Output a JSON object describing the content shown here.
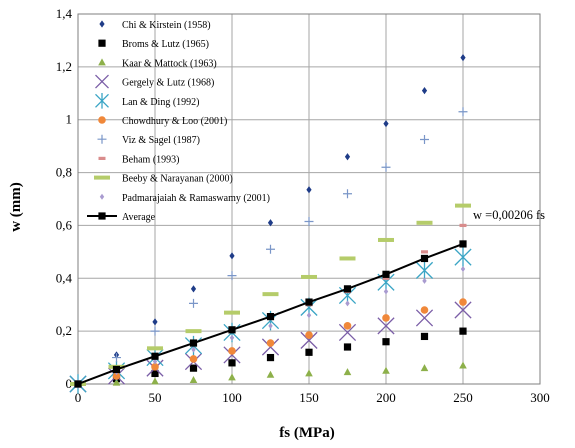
{
  "chart_data": {
    "type": "scatter",
    "xlabel": "fs (MPa)",
    "ylabel": "w (mm)",
    "xlim": [
      0,
      300
    ],
    "ylim": [
      0,
      1.4
    ],
    "x_ticks": [
      0,
      50,
      100,
      150,
      200,
      250,
      300
    ],
    "y_ticks": [
      0,
      0.2,
      0.4,
      0.6,
      0.8,
      1,
      1.2,
      1.4
    ],
    "x_tick_labels": [
      "0",
      "50",
      "100",
      "150",
      "200",
      "250",
      "300"
    ],
    "y_tick_labels": [
      "0",
      "0,2",
      "0,4",
      "0,6",
      "0,8",
      "1",
      "1,2",
      "1,4"
    ],
    "grid": true,
    "legend_position": "top-left",
    "annotation": "w =0,00206 fs",
    "x": [
      0,
      25,
      50,
      75,
      100,
      125,
      150,
      175,
      200,
      225,
      250
    ],
    "series": [
      {
        "name": "Chi & Kirstein  (1958)",
        "marker": "diamond",
        "color": "#1f3c88",
        "values": [
          0,
          0.11,
          0.235,
          0.36,
          0.485,
          0.61,
          0.735,
          0.86,
          0.985,
          1.11,
          1.235
        ]
      },
      {
        "name": "Broms & Lutz  (1965)",
        "marker": "square",
        "color": "#000000",
        "values": [
          0,
          0.02,
          0.04,
          0.06,
          0.08,
          0.1,
          0.12,
          0.14,
          0.16,
          0.18,
          0.2
        ]
      },
      {
        "name": "Kaar & Mattock  (1963)",
        "marker": "triangle",
        "color": "#8db04a",
        "values": [
          0,
          0.005,
          0.01,
          0.015,
          0.025,
          0.035,
          0.04,
          0.045,
          0.05,
          0.06,
          0.07
        ]
      },
      {
        "name": "Gergely & Lutz  (1968)",
        "marker": "x",
        "color": "#7b5ea7",
        "values": [
          0,
          0.03,
          0.06,
          0.085,
          0.11,
          0.14,
          0.165,
          0.195,
          0.22,
          0.25,
          0.28
        ]
      },
      {
        "name": "Lan & Ding  (1992)",
        "marker": "star",
        "color": "#3aa5c5",
        "values": [
          0,
          0.05,
          0.1,
          0.145,
          0.195,
          0.24,
          0.29,
          0.335,
          0.385,
          0.43,
          0.48
        ]
      },
      {
        "name": "Chowdhury & Loo  (2001)",
        "marker": "circle",
        "color": "#f0883a",
        "values": [
          0,
          0.03,
          0.065,
          0.095,
          0.125,
          0.155,
          0.185,
          0.22,
          0.25,
          0.28,
          0.31
        ]
      },
      {
        "name": "Viz & Sagel (1987)",
        "marker": "plus",
        "color": "#7a96c8",
        "values": [
          0,
          0.1,
          0.2,
          0.305,
          0.41,
          0.51,
          0.615,
          0.72,
          0.82,
          0.925,
          1.03
        ]
      },
      {
        "name": "Beham (1993)",
        "marker": "dash",
        "color": "#d98c8c",
        "values": [
          0,
          0.05,
          0.1,
          0.15,
          0.2,
          0.25,
          0.3,
          0.35,
          0.4,
          0.5,
          0.6
        ]
      },
      {
        "name": "Beeby & Narayanan (2000)",
        "marker": "bar",
        "color": "#b5cc6a",
        "values": [
          0,
          0.065,
          0.135,
          0.2,
          0.27,
          0.34,
          0.405,
          0.475,
          0.545,
          0.61,
          0.675
        ]
      },
      {
        "name": "Padmarajaiah & Ramaswamy (2001)",
        "marker": "smalldiamond",
        "color": "#a99bd0",
        "values": [
          0,
          0.045,
          0.085,
          0.13,
          0.175,
          0.22,
          0.26,
          0.305,
          0.35,
          0.39,
          0.435
        ]
      },
      {
        "name": "Average",
        "marker": "square",
        "color": "#000000",
        "line": true,
        "values": [
          0,
          0.055,
          0.105,
          0.155,
          0.205,
          0.255,
          0.31,
          0.36,
          0.415,
          0.475,
          0.53
        ]
      }
    ]
  }
}
